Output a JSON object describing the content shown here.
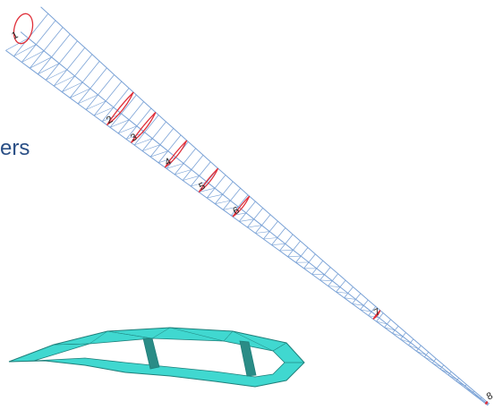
{
  "heading_fragment": "ers",
  "section_labels": [
    "1",
    "2",
    "3",
    "4",
    "5",
    "6",
    "7",
    "8"
  ],
  "colors": {
    "wireframe": "#7aa2d6",
    "section": "#e0303a",
    "shell_fill": "#40d8d0",
    "shell_edge": "#1f7f7a",
    "web_fill": "#2a8c86",
    "heading": "#2a4f86"
  }
}
